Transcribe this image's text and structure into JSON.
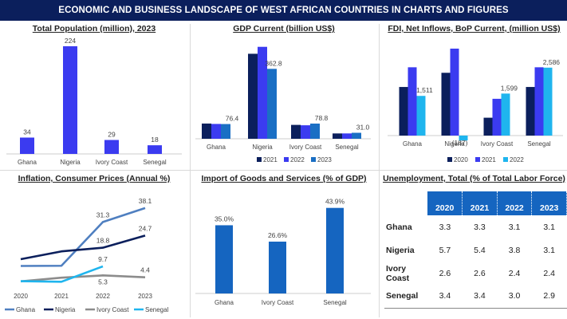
{
  "header": {
    "title": "ECONOMIC AND BUSINESS LANDSCAPE OF WEST AFRICAN COUNTRIES IN CHARTS AND FIGURES"
  },
  "colors": {
    "banner": "#0b1f5c",
    "population": "#3b3bf0",
    "y2020": "#0b1f5c",
    "y2021": "#3b3bf0",
    "y2022": "#1a6fc4",
    "y2023": "#1e8fd0",
    "fdi2022": "#1fb5ee",
    "imports": "#1565c0",
    "ghana": "#4f7fc0",
    "nigeria": "#0b1f5c",
    "ivory": "#8c8c8c",
    "senegal": "#1fb5ee",
    "table_header": "#1565c0"
  },
  "chart_data": [
    {
      "id": "population",
      "type": "bar",
      "title": "Total Population (million), 2023",
      "categories": [
        "Ghana",
        "Nigeria",
        "Ivory Coast",
        "Senegal"
      ],
      "values": [
        34,
        224,
        29,
        18
      ],
      "labels": [
        "34",
        "224",
        "29",
        "18"
      ],
      "ylim": [
        0,
        224
      ]
    },
    {
      "id": "gdp",
      "type": "bar",
      "title": "GDP Current (billion US$)",
      "categories": [
        "Ghana",
        "Nigeria",
        "Ivory Coast",
        "Senegal"
      ],
      "legend": [
        "2021",
        "2022",
        "2023"
      ],
      "series": [
        {
          "name": "2021",
          "values": [
            79,
            441,
            72,
            27.6
          ]
        },
        {
          "name": "2022",
          "values": [
            77,
            477,
            70,
            27.7
          ]
        },
        {
          "name": "2023",
          "values": [
            76.4,
            362.8,
            78.8,
            31.0
          ]
        }
      ],
      "labels": [
        "76.4",
        "362.8",
        "78.8",
        "31.0"
      ],
      "ylim": [
        0,
        480
      ]
    },
    {
      "id": "fdi",
      "type": "bar",
      "title": "FDI, Net Inflows, BoP Current, (million US$)",
      "categories": [
        "Ghana",
        "Nigeria",
        "Ivory Coast",
        "Senegal"
      ],
      "legend": [
        "2020",
        "2021",
        "2022"
      ],
      "series": [
        {
          "name": "2020",
          "values": [
            1850,
            2390,
            680,
            1850
          ]
        },
        {
          "name": "2021",
          "values": [
            2600,
            3310,
            1400,
            2600
          ]
        },
        {
          "name": "2022",
          "values": [
            1511,
            -187,
            1599,
            2586
          ]
        }
      ],
      "labels": [
        "1,511",
        "(187)",
        "1,599",
        "2,586"
      ],
      "ylim": [
        -300,
        3400
      ]
    },
    {
      "id": "inflation",
      "type": "line",
      "title": "Inflation, Consumer Prices (Annual %)",
      "x": [
        "2020",
        "2021",
        "2022",
        "2023"
      ],
      "series": [
        {
          "name": "Ghana",
          "values": [
            9.9,
            10.0,
            31.3,
            38.1
          ]
        },
        {
          "name": "Nigeria",
          "values": [
            13.2,
            17.0,
            18.8,
            24.7
          ]
        },
        {
          "name": "Ivory Coast",
          "values": [
            2.4,
            4.2,
            5.3,
            4.4
          ]
        },
        {
          "name": "Senegal",
          "values": [
            2.5,
            2.2,
            9.7,
            null
          ]
        }
      ],
      "labels": [
        "38.1",
        "31.3",
        "24.7",
        "18.8",
        "9.7",
        "5.3",
        "4.4"
      ],
      "ylim": [
        0,
        40
      ]
    },
    {
      "id": "imports",
      "type": "bar",
      "title": "Import of Goods and Services (% of GDP)",
      "categories": [
        "Ghana",
        "Ivory Coast",
        "Senegal"
      ],
      "values": [
        35.0,
        26.6,
        43.9
      ],
      "labels": [
        "35.0%",
        "26.6%",
        "43.9%"
      ],
      "ylim": [
        0,
        45
      ]
    },
    {
      "id": "unemployment",
      "type": "table",
      "title": "Unemployment, Total (% of Total Labor Force)",
      "columns": [
        "2020",
        "2021",
        "2022",
        "2023"
      ],
      "rows": [
        {
          "country": "Ghana",
          "values": [
            "3.3",
            "3.3",
            "3.1",
            "3.1"
          ]
        },
        {
          "country": "Nigeria",
          "values": [
            "5.7",
            "5.4",
            "3.8",
            "3.1"
          ]
        },
        {
          "country": "Ivory Coast",
          "values": [
            "2.6",
            "2.6",
            "2.4",
            "2.4"
          ]
        },
        {
          "country": "Senegal",
          "values": [
            "3.4",
            "3.4",
            "3.0",
            "2.9"
          ]
        }
      ]
    }
  ]
}
